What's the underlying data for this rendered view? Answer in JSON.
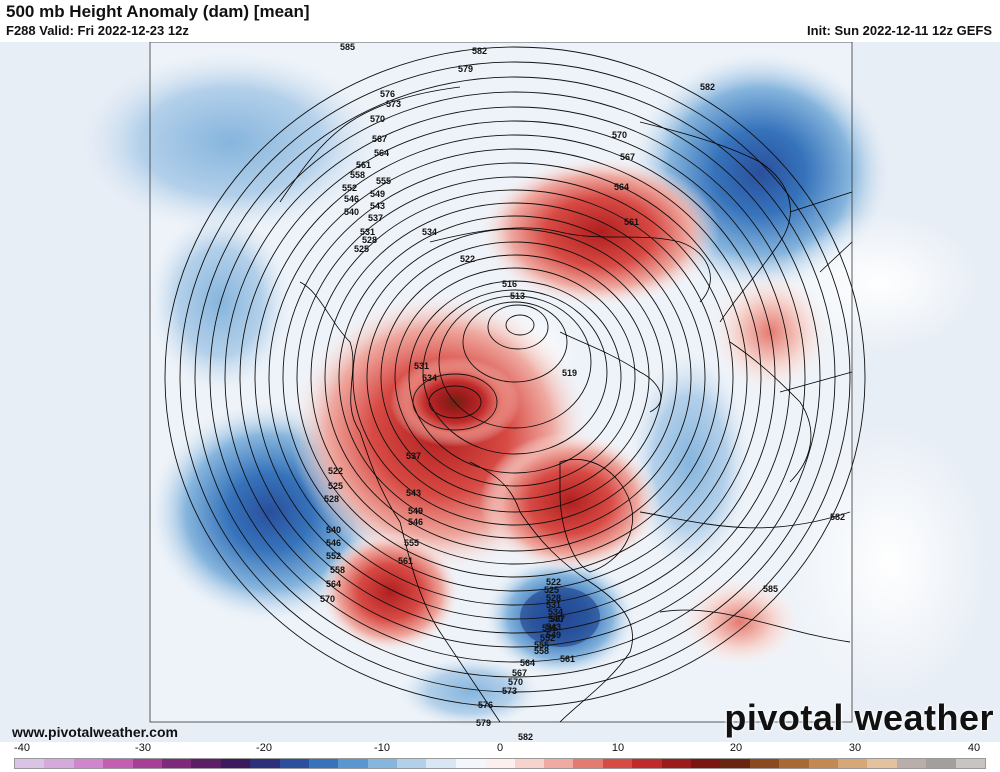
{
  "header": {
    "title": "500 mb Height Anomaly (dam) [mean]",
    "valid": "F288 Valid: Fri 2022-12-23 12z",
    "init": "Init: Sun 2022-12-11 12z GEFS"
  },
  "footer": {
    "url": "www.pivotalweather.com",
    "logo": "pivotal weather"
  },
  "colorbar": {
    "ticks": [
      "-40",
      "-30",
      "-20",
      "-10",
      "0",
      "10",
      "20",
      "30",
      "40"
    ],
    "colors": [
      "#d9c4e6",
      "#d6a9dc",
      "#cf86cc",
      "#c45eb3",
      "#a63f95",
      "#7d2a7a",
      "#5c1f66",
      "#3b1b5e",
      "#2c2f7a",
      "#2a4f9c",
      "#3673bb",
      "#5a96cf",
      "#86b5dd",
      "#b3d0ea",
      "#d9e6f3",
      "#f3f6fa",
      "#fbf0ee",
      "#f6d3cd",
      "#efaaa1",
      "#e57a70",
      "#d84a44",
      "#c02a2a",
      "#9c1c1c",
      "#7a1512",
      "#6a2510",
      "#8a4a20",
      "#a86a35",
      "#c28a52",
      "#d7a877",
      "#e4c29e",
      "#b9aeaa",
      "#a39f9d",
      "#c8c4c2"
    ]
  },
  "contours": {
    "labels": [
      "585",
      "582",
      "579",
      "576",
      "573",
      "570",
      "567",
      "564",
      "561",
      "558",
      "555",
      "552",
      "549",
      "546",
      "543",
      "540",
      "537",
      "534",
      "531",
      "528",
      "525",
      "522",
      "516",
      "513",
      "519",
      "531",
      "534",
      "537",
      "543",
      "546",
      "549",
      "555",
      "561",
      "522",
      "525",
      "528",
      "540",
      "546",
      "552",
      "558",
      "564",
      "570",
      "582",
      "582",
      "570",
      "567",
      "564",
      "561",
      "585",
      "522",
      "525",
      "528",
      "531",
      "534",
      "537",
      "540",
      "543",
      "546",
      "549",
      "552",
      "555",
      "558",
      "561",
      "564",
      "567",
      "570",
      "573",
      "576",
      "579",
      "582"
    ]
  }
}
